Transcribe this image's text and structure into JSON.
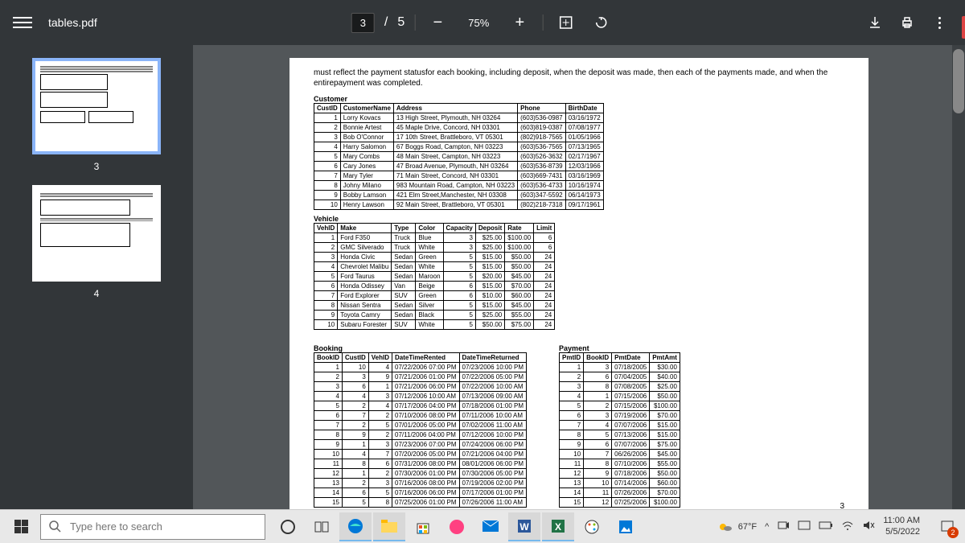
{
  "toolbar": {
    "filename": "tables.pdf",
    "current_page": "3",
    "total_pages": "5",
    "page_sep": " / ",
    "zoom": "75%"
  },
  "thumbnails": {
    "active": 3,
    "nums": [
      "3",
      "4"
    ]
  },
  "page": {
    "intro_text": "must reflect the payment statusfor each booking, including deposit, when the deposit was made, then each of the payments made, and when the entirepayment was completed.",
    "page_number": "3"
  },
  "customer": {
    "label": "Customer",
    "headers": [
      "CustID",
      "CustomerName",
      "Address",
      "Phone",
      "BirthDate"
    ],
    "rows": [
      [
        "1",
        "Lorry Kovacs",
        "13 High Street, Plymouth, NH 03264",
        "(603)536-0987",
        "03/16/1972"
      ],
      [
        "2",
        "Bonnie Artest",
        "45 Maple Drive, Concord, NH 03301",
        "(603)819-0387",
        "07/08/1977"
      ],
      [
        "3",
        "Bob O'Connor",
        "17 10th Street, Brattleboro, VT 05301",
        "(802)918-7565",
        "01/05/1966"
      ],
      [
        "4",
        "Harry Salomon",
        "67 Boggs Road, Campton, NH 03223",
        "(603)536-7565",
        "07/13/1965"
      ],
      [
        "5",
        "Mary Combs",
        "48 Main Street, Campton, NH 03223",
        "(603)526-3632",
        "02/17/1967"
      ],
      [
        "6",
        "Cary Jones",
        "47 Broad Avenue, Plymouth, NH 03264",
        "(603)536-8739",
        "12/03/1966"
      ],
      [
        "7",
        "Mary Tyler",
        "71 Main Street, Concord, NH 03301",
        "(603)669-7431",
        "03/16/1969"
      ],
      [
        "8",
        "Johny Milano",
        "983 Mountain Road, Campton, NH 03223",
        "(603)536-4733",
        "10/16/1974"
      ],
      [
        "9",
        "Bobby Lamson",
        "421 Elm Street,Manchester, NH 03308",
        "(603)347-5592",
        "06/14/1973"
      ],
      [
        "10",
        "Henry Lawson",
        "92 Main Street, Brattleboro, VT 05301",
        "(802)218-7318",
        "09/17/1961"
      ]
    ]
  },
  "vehicle": {
    "label": "Vehicle",
    "headers": [
      "VehID",
      "Make",
      "Type",
      "Color",
      "Capacity",
      "Deposit",
      "Rate",
      "Limit"
    ],
    "rows": [
      [
        "1",
        "Ford F350",
        "Truck",
        "Blue",
        "3",
        "$25.00",
        "$100.00",
        "6"
      ],
      [
        "2",
        "GMC Silverado",
        "Truck",
        "White",
        "3",
        "$25.00",
        "$100.00",
        "6"
      ],
      [
        "3",
        "Honda Civic",
        "Sedan",
        "Green",
        "5",
        "$15.00",
        "$50.00",
        "24"
      ],
      [
        "4",
        "Chevrolet Malibu",
        "Sedan",
        "White",
        "5",
        "$15.00",
        "$50.00",
        "24"
      ],
      [
        "5",
        "Ford Taurus",
        "Sedan",
        "Maroon",
        "5",
        "$20.00",
        "$45.00",
        "24"
      ],
      [
        "6",
        "Honda Odissey",
        "Van",
        "Beige",
        "6",
        "$15.00",
        "$70.00",
        "24"
      ],
      [
        "7",
        "Ford Explorer",
        "SUV",
        "Green",
        "6",
        "$10.00",
        "$60.00",
        "24"
      ],
      [
        "8",
        "Nissan Sentra",
        "Sedan",
        "Silver",
        "5",
        "$15.00",
        "$45.00",
        "24"
      ],
      [
        "9",
        "Toyota Camry",
        "Sedan",
        "Black",
        "5",
        "$25.00",
        "$55.00",
        "24"
      ],
      [
        "10",
        "Subaru Forester",
        "SUV",
        "White",
        "5",
        "$50.00",
        "$75.00",
        "24"
      ]
    ]
  },
  "booking": {
    "label": "Booking",
    "headers": [
      "BookID",
      "CustID",
      "VehID",
      "DateTimeRented",
      "DateTimeReturned"
    ],
    "rows": [
      [
        "1",
        "10",
        "4",
        "07/22/2006 07:00 PM",
        "07/23/2006 10:00 PM"
      ],
      [
        "2",
        "3",
        "9",
        "07/21/2006 01:00 PM",
        "07/22/2006 05:00 PM"
      ],
      [
        "3",
        "6",
        "1",
        "07/21/2006 06:00 PM",
        "07/22/2006 10:00 AM"
      ],
      [
        "4",
        "4",
        "3",
        "07/12/2006 10:00 AM",
        "07/13/2006 09:00 AM"
      ],
      [
        "5",
        "2",
        "4",
        "07/17/2006 04:00 PM",
        "07/18/2006 01:00 PM"
      ],
      [
        "6",
        "7",
        "2",
        "07/10/2006 08:00 PM",
        "07/11/2006 10:00 AM"
      ],
      [
        "7",
        "2",
        "5",
        "07/01/2006 05:00 PM",
        "07/02/2006 11:00 AM"
      ],
      [
        "8",
        "9",
        "2",
        "07/11/2006 04:00 PM",
        "07/12/2006 10:00 PM"
      ],
      [
        "9",
        "1",
        "3",
        "07/23/2006 07:00 PM",
        "07/24/2006 06:00 PM"
      ],
      [
        "10",
        "4",
        "7",
        "07/20/2006 05:00 PM",
        "07/21/2006 04:00 PM"
      ],
      [
        "11",
        "8",
        "6",
        "07/31/2006 08:00 PM",
        "08/01/2006 06:00 PM"
      ],
      [
        "12",
        "1",
        "2",
        "07/30/2006 01:00 PM",
        "07/30/2006 05:00 PM"
      ],
      [
        "13",
        "2",
        "3",
        "07/16/2006 08:00 PM",
        "07/19/2006 02:00 PM"
      ],
      [
        "14",
        "6",
        "5",
        "07/16/2006 06:00 PM",
        "07/17/2006 01:00 PM"
      ],
      [
        "15",
        "5",
        "8",
        "07/25/2006 01:00 PM",
        "07/26/2006 11:00 AM"
      ]
    ]
  },
  "payment": {
    "label": "Payment",
    "headers": [
      "PmtID",
      "BookID",
      "PmtDate",
      "PmtAmt"
    ],
    "rows": [
      [
        "1",
        "3",
        "07/18/2005",
        "$30.00"
      ],
      [
        "2",
        "6",
        "07/04/2005",
        "$40.00"
      ],
      [
        "3",
        "8",
        "07/08/2005",
        "$25.00"
      ],
      [
        "4",
        "1",
        "07/15/2006",
        "$50.00"
      ],
      [
        "5",
        "2",
        "07/15/2006",
        "$100.00"
      ],
      [
        "6",
        "3",
        "07/19/2006",
        "$70.00"
      ],
      [
        "7",
        "4",
        "07/07/2006",
        "$15.00"
      ],
      [
        "8",
        "5",
        "07/13/2006",
        "$15.00"
      ],
      [
        "9",
        "6",
        "07/07/2006",
        "$75.00"
      ],
      [
        "10",
        "7",
        "06/26/2006",
        "$45.00"
      ],
      [
        "11",
        "8",
        "07/10/2006",
        "$55.00"
      ],
      [
        "12",
        "9",
        "07/18/2006",
        "$50.00"
      ],
      [
        "13",
        "10",
        "07/14/2006",
        "$60.00"
      ],
      [
        "14",
        "11",
        "07/26/2006",
        "$70.00"
      ],
      [
        "15",
        "12",
        "07/25/2006",
        "$100.00"
      ]
    ]
  },
  "taskbar": {
    "search_placeholder": "Type here to search",
    "temp": "67°F",
    "time": "11:00 AM",
    "date": "5/5/2022",
    "notif_count": "2"
  }
}
